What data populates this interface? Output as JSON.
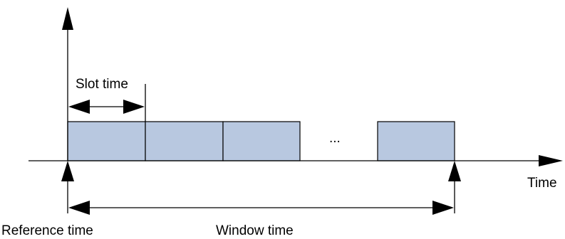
{
  "labels": {
    "slot_time": "Slot time",
    "time_axis": "Time",
    "reference_time": "Reference time",
    "window_time": "Window time",
    "ellipsis": "..."
  },
  "colors": {
    "slot_fill": "#b8c8e0",
    "stroke": "#000000"
  },
  "slots": {
    "before_gap": 3,
    "after_gap": 1
  }
}
